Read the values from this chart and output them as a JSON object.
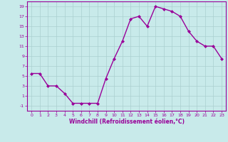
{
  "x": [
    0,
    1,
    2,
    3,
    4,
    5,
    6,
    7,
    8,
    9,
    10,
    11,
    12,
    13,
    14,
    15,
    16,
    17,
    18,
    19,
    20,
    21,
    22,
    23
  ],
  "y": [
    5.5,
    5.5,
    3.0,
    3.0,
    1.5,
    -0.5,
    -0.5,
    -0.5,
    -0.5,
    4.5,
    8.5,
    12.0,
    16.5,
    17.0,
    15.0,
    19.0,
    18.5,
    18.0,
    17.0,
    14.0,
    12.0,
    11.0,
    11.0,
    8.5
  ],
  "line_color": "#990099",
  "bg_color": "#c8eaea",
  "grid_color": "#aacfcf",
  "xlabel": "Windchill (Refroidissement éolien,°C)",
  "xlabel_color": "#990099",
  "ylim": [
    -2,
    20
  ],
  "xlim": [
    -0.5,
    23.5
  ],
  "yticks": [
    -1,
    1,
    3,
    5,
    7,
    9,
    11,
    13,
    15,
    17,
    19
  ],
  "xticks": [
    0,
    1,
    2,
    3,
    4,
    5,
    6,
    7,
    8,
    9,
    10,
    11,
    12,
    13,
    14,
    15,
    16,
    17,
    18,
    19,
    20,
    21,
    22,
    23
  ],
  "marker": "D",
  "markersize": 2.0,
  "linewidth": 1.0
}
